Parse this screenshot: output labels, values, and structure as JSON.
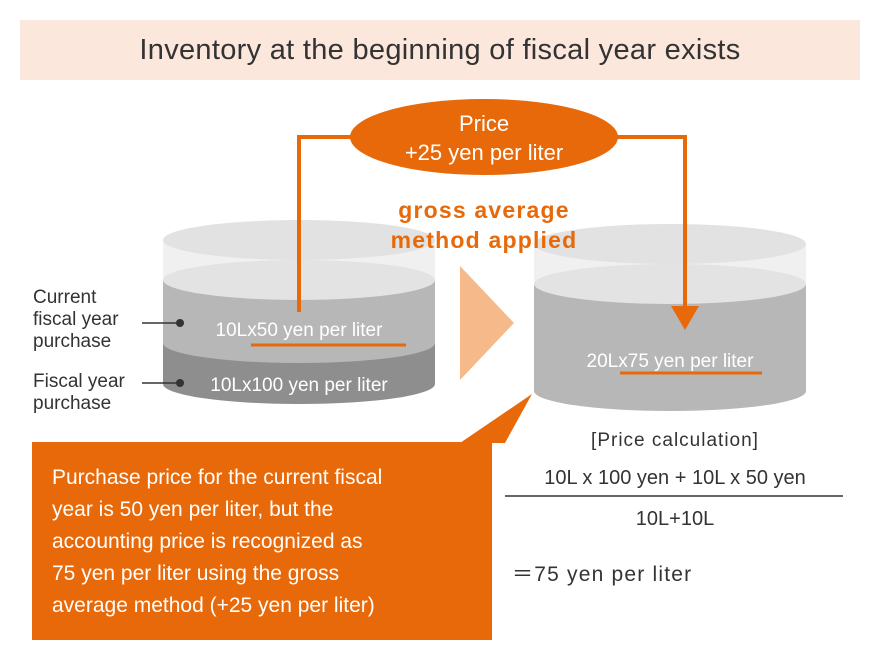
{
  "title": "Inventory at the beginning of fiscal year exists",
  "price_bubble": {
    "line1": "Price",
    "line2": "+25 yen per liter"
  },
  "method": {
    "line1": "gross average",
    "line2": "method applied"
  },
  "left_tank": {
    "upper_layer": "10Lx50 yen per liter",
    "lower_layer": "10Lx100 yen per liter",
    "label_current": [
      "Current",
      "fiscal year",
      "purchase"
    ],
    "label_fiscal": [
      "Fiscal year",
      "purchase"
    ]
  },
  "right_tank": {
    "layer": "20Lx75 yen per liter"
  },
  "callout": {
    "lines": [
      "Purchase price for the current fiscal",
      "year is 50 yen per liter, but the",
      "accounting price is recognized as",
      "75 yen per liter using the gross",
      "average method (+25 yen per liter)"
    ]
  },
  "calculation": {
    "heading": "[Price calculation]",
    "numerator": "10L x 100 yen + 10L x 50 yen",
    "denominator": "10L+10L",
    "result": "＝75 yen per liter"
  },
  "colors": {
    "accent": "#e8690a",
    "title_bg": "#fbe7dc",
    "arrow_light": "#f5b98a",
    "tank_top": "#e6e6e6",
    "tank_upper": "#b7b7b7",
    "tank_lower": "#8e8e8e"
  }
}
